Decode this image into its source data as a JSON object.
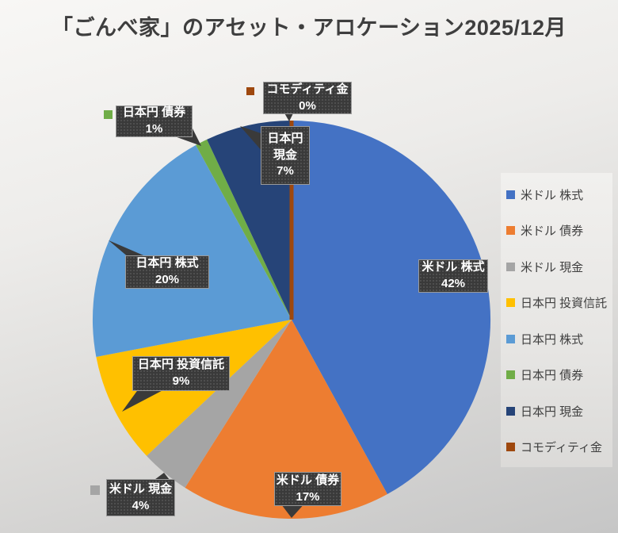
{
  "title": "「ごんべ家」のアセット・アロケーション2025/12月",
  "chart_data": {
    "type": "pie",
    "title": "「ごんべ家」のアセット・アロケーション2025/12月",
    "categories": [
      "米ドル 株式",
      "米ドル 債券",
      "米ドル 現金",
      "日本円 投資信託",
      "日本円 株式",
      "日本円 債券",
      "日本円 現金",
      "コモディティ金"
    ],
    "values": [
      42,
      17,
      4,
      9,
      20,
      1,
      7,
      0
    ],
    "unit": "%",
    "colors": [
      "#4472C4",
      "#ED7D31",
      "#A5A5A5",
      "#FFC000",
      "#5B9BD5",
      "#70AD47",
      "#264478",
      "#9E480E"
    ],
    "keys": [
      "usd_stock",
      "usd_bond",
      "usd_cash",
      "jpy_fund",
      "jpy_stock",
      "jpy_bond",
      "jpy_cash",
      "gold"
    ],
    "start_angle_deg": 0,
    "direction": "clockwise",
    "legend_position": "right",
    "data_labels": "category name + percent, dark patterned callouts"
  },
  "labels": {
    "usd_stock": {
      "name": "米ドル 株式",
      "pct": "42%"
    },
    "usd_bond": {
      "name": "米ドル 債券",
      "pct": "17%"
    },
    "usd_cash": {
      "name": "米ドル 現金",
      "pct": "4%"
    },
    "jpy_fund": {
      "name": "日本円 投資信託",
      "pct": "9%"
    },
    "jpy_stock": {
      "name": "日本円 株式",
      "pct": "20%"
    },
    "jpy_bond": {
      "name": "日本円 債券",
      "pct": "1%"
    },
    "jpy_cash": {
      "name": "日本円 現金",
      "pct": "7%"
    },
    "gold": {
      "name": "コモディティ金",
      "pct": "0%"
    }
  },
  "legend": {
    "items": [
      {
        "label": "米ドル 株式",
        "color": "#4472C4"
      },
      {
        "label": "米ドル 債券",
        "color": "#ED7D31"
      },
      {
        "label": "米ドル 現金",
        "color": "#A5A5A5"
      },
      {
        "label": "日本円 投資信託",
        "color": "#FFC000"
      },
      {
        "label": "日本円 株式",
        "color": "#5B9BD5"
      },
      {
        "label": "日本円 債券",
        "color": "#70AD47"
      },
      {
        "label": "日本円 現金",
        "color": "#264478"
      },
      {
        "label": "コモディティ金",
        "color": "#9E480E"
      }
    ]
  }
}
